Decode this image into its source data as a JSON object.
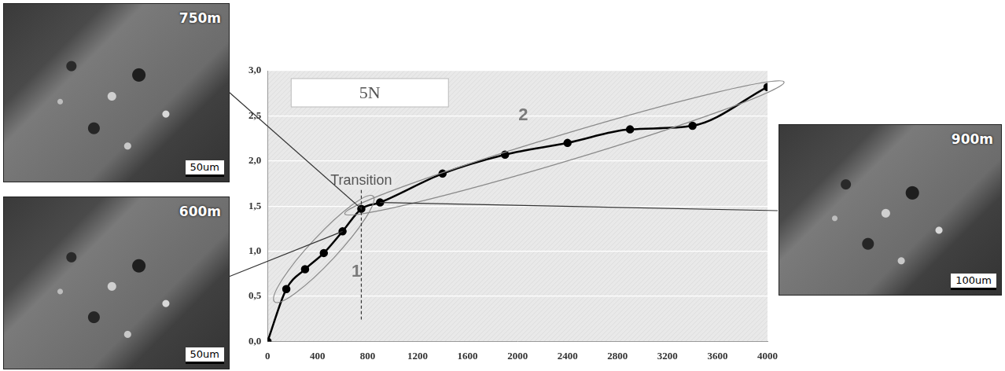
{
  "chart_data": {
    "type": "line",
    "title": "5N",
    "x": [
      0,
      150,
      300,
      450,
      600,
      750,
      900,
      1400,
      1900,
      2400,
      2900,
      3400,
      4000
    ],
    "values": [
      0,
      0.58,
      0.8,
      0.98,
      1.22,
      1.47,
      1.54,
      1.86,
      2.07,
      2.2,
      2.35,
      2.39,
      2.82
    ],
    "color": "#000000",
    "marker": "circle",
    "line_style": "solid",
    "xlim": [
      0,
      4000
    ],
    "xticks": [
      0,
      400,
      800,
      1200,
      1600,
      2000,
      2400,
      2800,
      3200,
      3600,
      4000
    ],
    "ylim": [
      0,
      3
    ],
    "yticks": [
      {
        "value": 0,
        "label": "0,0"
      },
      {
        "value": 0.5,
        "label": "0,5"
      },
      {
        "value": 1,
        "label": "1,0"
      },
      {
        "value": 1.5,
        "label": "1,5"
      },
      {
        "value": 2,
        "label": "2,0"
      },
      {
        "value": 2.5,
        "label": "2,5"
      },
      {
        "value": 3,
        "label": "3,0"
      }
    ],
    "grid": true,
    "transition": {
      "label": "Transition",
      "x": 750
    },
    "regions": [
      {
        "label": "1",
        "from": 150,
        "to": 750
      },
      {
        "label": "2",
        "from": 750,
        "to": 4000
      }
    ],
    "micrographs": [
      {
        "label": "750m",
        "scale_bar": "50um",
        "point_x": 750
      },
      {
        "label": "600m",
        "scale_bar": "50um",
        "point_x": 600
      },
      {
        "label": "900m",
        "scale_bar": "100um",
        "point_x": 900
      }
    ]
  }
}
